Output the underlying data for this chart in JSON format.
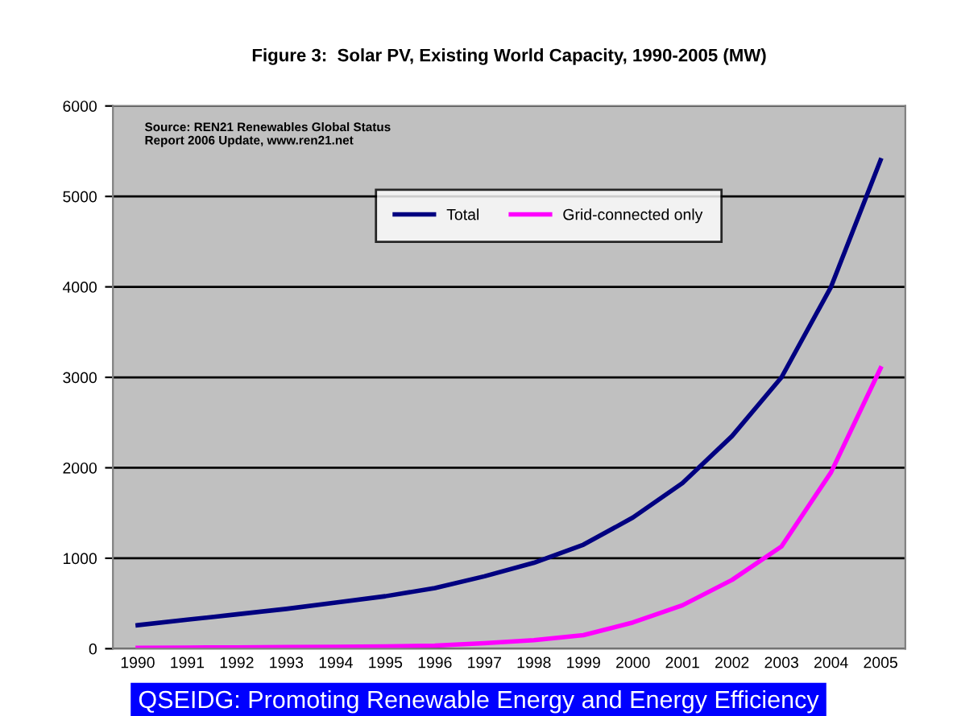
{
  "chart_data": {
    "type": "line",
    "title": "Figure 3:  Solar PV, Existing World Capacity, 1990-2005 (MW)",
    "categories": [
      "1990",
      "1991",
      "1992",
      "1993",
      "1994",
      "1995",
      "1996",
      "1997",
      "1998",
      "1999",
      "2000",
      "2001",
      "2002",
      "2003",
      "2004",
      "2005"
    ],
    "series": [
      {
        "name": "Total",
        "color": "#000080",
        "values": [
          260,
          320,
          380,
          440,
          510,
          580,
          670,
          800,
          950,
          1150,
          1450,
          1830,
          2350,
          3000,
          4000,
          5400
        ]
      },
      {
        "name": "Grid-connected only",
        "color": "#ff00ff",
        "values": [
          10,
          12,
          15,
          18,
          20,
          25,
          35,
          60,
          95,
          150,
          290,
          480,
          760,
          1130,
          1950,
          3100
        ]
      }
    ],
    "ylim": [
      0,
      6000
    ],
    "yticks": [
      0,
      1000,
      2000,
      3000,
      4000,
      5000,
      6000
    ],
    "grid": "y",
    "legend": "top",
    "marker": "none",
    "line_style": "solid",
    "annotations": [
      "Source: REN21 Renewables Global Status\nReport 2006 Update, www.ren21.net",
      "QSEIDG: Promoting Renewable Energy and Energy Efficiency"
    ]
  }
}
